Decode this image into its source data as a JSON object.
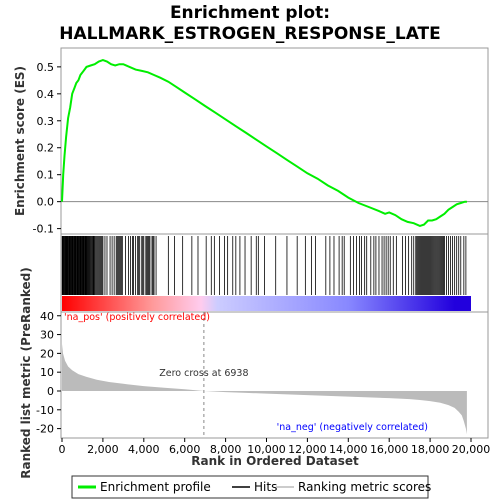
{
  "chart_data": {
    "type": "line",
    "title_line1": "Enrichment plot:",
    "title_line2": "HALLMARK_ESTROGEN_RESPONSE_LATE",
    "es_panel": {
      "ylabel": "Enrichment score (ES)",
      "ylim": [
        -0.12,
        0.57
      ],
      "yticks": [
        "0.5",
        "0.4",
        "0.3",
        "0.2",
        "0.1",
        "0.0",
        "-0.1"
      ],
      "ytick_values": [
        0.5,
        0.4,
        0.3,
        0.2,
        0.1,
        0.0,
        -0.1
      ],
      "series": [
        {
          "name": "Enrichment profile",
          "color": "#00ee00",
          "x": [
            0,
            60,
            120,
            200,
            300,
            400,
            500,
            600,
            700,
            800,
            900,
            1000,
            1100,
            1200,
            1400,
            1600,
            1800,
            2000,
            2200,
            2400,
            2600,
            2800,
            3000,
            3300,
            3600,
            3900,
            4200,
            4500,
            4800,
            5200,
            5600,
            6000,
            6500,
            7000,
            7500,
            8000,
            8500,
            9000,
            9500,
            10000,
            10500,
            11000,
            11500,
            12000,
            12500,
            13000,
            13500,
            14000,
            14500,
            15000,
            15500,
            15800,
            16000,
            16300,
            16600,
            16900,
            17200,
            17500,
            17700,
            17900,
            18100,
            18300,
            18500,
            18700,
            18900,
            19100,
            19300,
            19500,
            19700,
            19800
          ],
          "y": [
            0.0,
            0.1,
            0.17,
            0.24,
            0.31,
            0.35,
            0.4,
            0.42,
            0.44,
            0.45,
            0.47,
            0.48,
            0.49,
            0.5,
            0.505,
            0.51,
            0.52,
            0.525,
            0.52,
            0.51,
            0.505,
            0.51,
            0.51,
            0.5,
            0.49,
            0.485,
            0.48,
            0.47,
            0.46,
            0.445,
            0.425,
            0.405,
            0.38,
            0.355,
            0.33,
            0.305,
            0.28,
            0.255,
            0.23,
            0.205,
            0.18,
            0.155,
            0.13,
            0.105,
            0.085,
            0.06,
            0.04,
            0.015,
            -0.005,
            -0.02,
            -0.035,
            -0.045,
            -0.04,
            -0.05,
            -0.065,
            -0.075,
            -0.08,
            -0.09,
            -0.085,
            -0.07,
            -0.07,
            -0.065,
            -0.055,
            -0.045,
            -0.03,
            -0.02,
            -0.01,
            -0.005,
            0.0,
            0.0
          ]
        }
      ]
    },
    "hits_panel": {
      "legend_name": "Hits",
      "gradient_stops": [
        "#ff0000",
        "#ff9999",
        "#ffccee",
        "#ccccff",
        "#8888ff",
        "#2200dd"
      ]
    },
    "metric_panel": {
      "ylabel": "Ranked list metric (PreRanked)",
      "xlabel": "Rank in Ordered Dataset",
      "legend_name": "Ranking metric scores",
      "ylim": [
        -25,
        42
      ],
      "yticks": [
        "40",
        "30",
        "20",
        "10",
        "0",
        "-10",
        "-20"
      ],
      "ytick_values": [
        40,
        30,
        20,
        10,
        0,
        -10,
        -20
      ],
      "zero_cross_label": "Zero cross at 6938",
      "zero_cross_x": 6938,
      "pos_label": "'na_pos' (positively correlated)",
      "neg_label": "'na_neg' (negatively correlated)",
      "pos_color": "#ff0000",
      "neg_color": "#0000ff",
      "metric_x": [
        0,
        50,
        150,
        300,
        500,
        800,
        1200,
        1700,
        2300,
        3000,
        4000,
        5000,
        6000,
        6938,
        8000,
        9000,
        10000,
        11000,
        12000,
        13000,
        14000,
        15000,
        16000,
        17000,
        17500,
        18000,
        18500,
        18900,
        19200,
        19400,
        19550,
        19650,
        19750,
        19800
      ],
      "metric_y": [
        25,
        20,
        16,
        13,
        11,
        9,
        7.5,
        6,
        4.8,
        3.8,
        2.6,
        1.7,
        0.9,
        0,
        -0.6,
        -1.0,
        -1.4,
        -1.8,
        -2.2,
        -2.6,
        -3.0,
        -3.4,
        -3.8,
        -4.3,
        -4.8,
        -5.4,
        -6.3,
        -7.5,
        -9,
        -11,
        -13,
        -16,
        -20,
        -23
      ]
    },
    "x_axis": {
      "xlim": [
        0,
        20000
      ],
      "xticks": [
        "0",
        "2,000",
        "4,000",
        "6,000",
        "8,000",
        "10,000",
        "12,000",
        "14,000",
        "16,000",
        "18,000",
        "20,000"
      ],
      "xtick_values": [
        0,
        2000,
        4000,
        6000,
        8000,
        10000,
        12000,
        14000,
        16000,
        18000,
        20000
      ]
    },
    "hit_positions": [
      10,
      40,
      70,
      95,
      120,
      150,
      175,
      200,
      230,
      260,
      290,
      320,
      350,
      380,
      410,
      440,
      470,
      500,
      530,
      560,
      590,
      620,
      650,
      680,
      710,
      740,
      770,
      800,
      830,
      860,
      890,
      920,
      950,
      980,
      1010,
      1040,
      1070,
      1100,
      1130,
      1160,
      1190,
      1220,
      1250,
      1280,
      1320,
      1360,
      1400,
      1440,
      1480,
      1520,
      1560,
      1600,
      1650,
      1700,
      1750,
      1800,
      1850,
      1900,
      1950,
      2000,
      2100,
      2200,
      2350,
      2450,
      2550,
      2650,
      2700,
      2750,
      2800,
      2850,
      2900,
      2950,
      3100,
      3250,
      3350,
      3450,
      3500,
      3600,
      3700,
      3750,
      3800,
      3900,
      3950,
      4000,
      4100,
      4150,
      4200,
      4250,
      4300,
      4400,
      4450,
      4500,
      4600,
      5200,
      5500,
      5900,
      6350,
      6650,
      7050,
      7300,
      7450,
      7700,
      7950,
      8100,
      8350,
      8500,
      8700,
      8950,
      9250,
      9500,
      9600,
      9900,
      10450,
      11000,
      11500,
      11900,
      12200,
      12400,
      12900,
      13100,
      13300,
      13550,
      13700,
      13800,
      14100,
      14250,
      14400,
      14550,
      14650,
      14800,
      14900,
      15100,
      15250,
      15350,
      15500,
      15650,
      15750,
      15850,
      15950,
      16050,
      16200,
      16350,
      16650,
      16800,
      16950,
      17100,
      17200,
      17300,
      17350,
      17400,
      17450,
      17500,
      17550,
      17600,
      17650,
      17700,
      17750,
      17800,
      17850,
      17900,
      17950,
      18000,
      18050,
      18100,
      18150,
      18200,
      18250,
      18300,
      18350,
      18400,
      18450,
      18500,
      18550,
      18600,
      18650,
      18700,
      18800,
      18900,
      19000,
      19100,
      19200,
      19300,
      19400,
      19500,
      19650,
      19750
    ]
  },
  "legend": {
    "items": [
      {
        "label": "Enrichment profile",
        "color": "#00ee00"
      },
      {
        "label": "Hits",
        "color": "#000000"
      },
      {
        "label": "Ranking metric scores",
        "color": "#bbbbbb"
      }
    ]
  }
}
